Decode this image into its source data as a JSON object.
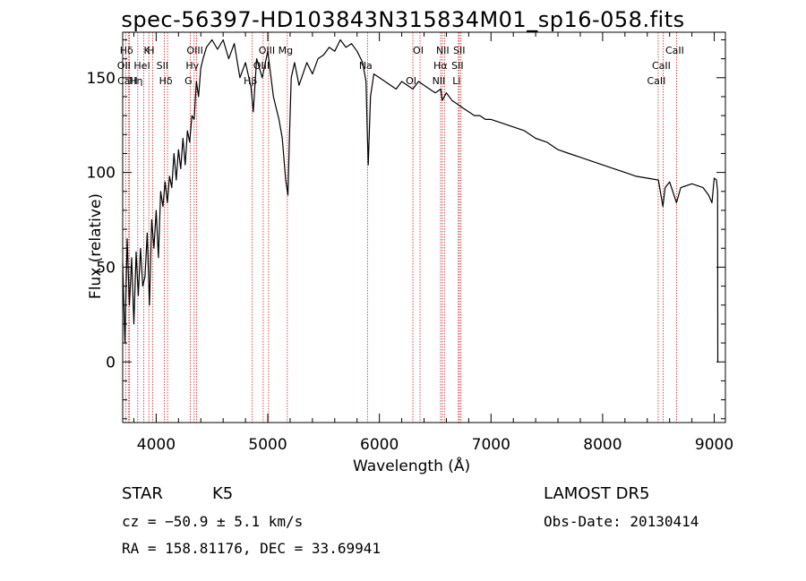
{
  "chart_data": {
    "type": "line",
    "title": "spec-56397-HD103843N315834M01_sp16-058.fits",
    "xlabel": "Wavelength (Å)",
    "ylabel": "Flux (relative)",
    "xlim": [
      3700,
      9100
    ],
    "ylim": [
      -32,
      174
    ],
    "xticks": [
      4000,
      5000,
      6000,
      7000,
      8000,
      9000
    ],
    "yticks": [
      0,
      50,
      100,
      150
    ],
    "grid": false,
    "series": [
      {
        "x": [
          3700,
          3720,
          3740,
          3760,
          3780,
          3800,
          3820,
          3840,
          3860,
          3880,
          3900,
          3920,
          3940,
          3960,
          3980,
          4000,
          4020,
          4040,
          4060,
          4080,
          4100,
          4120,
          4140,
          4160,
          4180,
          4200,
          4220,
          4240,
          4260,
          4280,
          4300,
          4320,
          4340,
          4360,
          4380,
          4400,
          4420,
          4450,
          4500,
          4550,
          4600,
          4650,
          4700,
          4750,
          4800,
          4850,
          4870,
          4900,
          4950,
          5000,
          5050,
          5100,
          5130,
          5160,
          5180,
          5195,
          5210,
          5240,
          5280,
          5350,
          5400,
          5450,
          5500,
          5550,
          5600,
          5650,
          5700,
          5750,
          5800,
          5850,
          5880,
          5892,
          5900,
          5920,
          5950,
          6000,
          6050,
          6100,
          6150,
          6200,
          6250,
          6300,
          6350,
          6400,
          6450,
          6500,
          6550,
          6563,
          6600,
          6650,
          6700,
          6750,
          6800,
          6850,
          6900,
          6950,
          7000,
          7100,
          7200,
          7300,
          7400,
          7500,
          7600,
          7700,
          7800,
          7900,
          8000,
          8100,
          8200,
          8300,
          8400,
          8500,
          8540,
          8560,
          8600,
          8662,
          8700,
          8800,
          8900,
          8950,
          8980,
          9000,
          9020,
          9030,
          9032,
          9040
        ],
        "y": [
          52,
          10,
          65,
          30,
          55,
          20,
          58,
          35,
          60,
          40,
          45,
          68,
          30,
          75,
          60,
          80,
          55,
          90,
          82,
          95,
          84,
          98,
          92,
          110,
          96,
          112,
          102,
          118,
          104,
          122,
          116,
          130,
          128,
          148,
          140,
          155,
          160,
          166,
          170,
          165,
          170,
          160,
          168,
          150,
          158,
          145,
          132,
          160,
          150,
          164,
          140,
          128,
          118,
          96,
          88,
          120,
          150,
          158,
          146,
          158,
          152,
          160,
          162,
          166,
          164,
          170,
          166,
          168,
          164,
          158,
          148,
          120,
          104,
          140,
          152,
          150,
          148,
          146,
          144,
          148,
          146,
          144,
          148,
          146,
          144,
          142,
          144,
          138,
          142,
          138,
          136,
          134,
          132,
          130,
          130,
          128,
          128,
          126,
          124,
          122,
          118,
          116,
          112,
          110,
          108,
          106,
          104,
          102,
          100,
          98,
          97,
          96,
          82,
          92,
          95,
          84,
          92,
          94,
          92,
          88,
          84,
          97,
          96,
          90,
          0,
          0
        ]
      }
    ],
    "line_markers": [
      {
        "label": "Hδ",
        "x": 3750
      },
      {
        "label": "OII",
        "x": 3727
      },
      {
        "label": "CaH",
        "x": 3760
      },
      {
        "label": "K",
        "x": 3934
      },
      {
        "label": "HeI",
        "x": 3889
      },
      {
        "label": "Hη",
        "x": 3835
      },
      {
        "label": "H",
        "x": 3968
      },
      {
        "label": "SII",
        "x": 4072
      },
      {
        "label": "Hδ",
        "x": 4102
      },
      {
        "label": "OIII",
        "x": 4363
      },
      {
        "label": "Hγ",
        "x": 4340
      },
      {
        "label": "G",
        "x": 4305
      },
      {
        "label": "OIII",
        "x": 5007
      },
      {
        "label": "OIII",
        "x": 4959
      },
      {
        "label": "Hβ",
        "x": 4861
      },
      {
        "label": "Mg",
        "x": 5175
      },
      {
        "label": "Na",
        "x": 5893
      },
      {
        "label": "OI",
        "x": 6300
      },
      {
        "label": "OI",
        "x": 6364
      },
      {
        "label": "Hα",
        "x": 6563
      },
      {
        "label": "NII",
        "x": 6548
      },
      {
        "label": "NII",
        "x": 6583
      },
      {
        "label": "SII",
        "x": 6716
      },
      {
        "label": "Li",
        "x": 6708
      },
      {
        "label": "SII",
        "x": 6731
      },
      {
        "label": "CaII",
        "x": 8542
      },
      {
        "label": "CaII",
        "x": 8498
      },
      {
        "label": "CaII",
        "x": 8662
      }
    ]
  },
  "footer": {
    "object_class": "STAR",
    "subclass": "K5",
    "cz": "cz = −50.9 ± 5.1 km/s",
    "radec": "RA = 158.81176, DEC =  33.69941",
    "survey": "LAMOST DR5",
    "obs_date": "Obs-Date: 20130414"
  },
  "colors": {
    "axis": "#000000",
    "spectrum": "#000000",
    "line_marker": "#cc2222"
  }
}
